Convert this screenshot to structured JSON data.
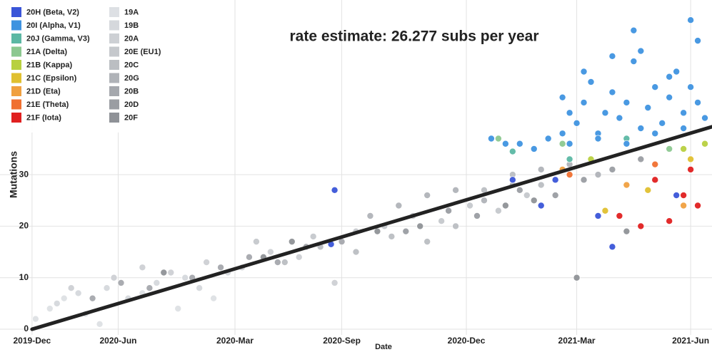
{
  "chart_data": {
    "type": "scatter",
    "title": "rate estimate: 26.277 subs per year",
    "xlabel": "Date",
    "ylabel": "Mutations",
    "xlim": [
      0,
      100
    ],
    "ylim": [
      -1.1,
      63.9
    ],
    "xticks": [
      {
        "value": 4.5,
        "label": "2019-Dec"
      },
      {
        "value": 16.6,
        "label": "2020-Jun"
      },
      {
        "value": 33,
        "label": "2020-Mar"
      },
      {
        "value": 48,
        "label": "2020-Sep"
      },
      {
        "value": 65.5,
        "label": "2020-Dec"
      },
      {
        "value": 81,
        "label": "2021-Mar"
      },
      {
        "value": 97,
        "label": "2021-Jun"
      }
    ],
    "yticks": [
      0,
      10,
      20,
      30
    ],
    "grid": true,
    "trend_line": {
      "x": [
        4.5,
        100
      ],
      "values": [
        0,
        39.3
      ],
      "color": "#222222"
    },
    "series": [
      {
        "name": "20H (Beta, V2)",
        "color": "#3a55d8",
        "x": [
          47,
          46.5,
          72,
          76,
          78,
          84,
          86,
          95
        ],
        "values": [
          27,
          16.5,
          29,
          24,
          29,
          22,
          16,
          26
        ]
      },
      {
        "name": "20I (Alpha, V1)",
        "color": "#3f93e0",
        "x": [
          69,
          71,
          73,
          75,
          77,
          79,
          79,
          80,
          81,
          82,
          83,
          84,
          85,
          86,
          87,
          88,
          89,
          90,
          91,
          92,
          93,
          94,
          95,
          96,
          97,
          98,
          99,
          80,
          84,
          88,
          92,
          96,
          82,
          86,
          90,
          94,
          98,
          89,
          97
        ],
        "values": [
          37,
          36,
          36,
          35,
          37,
          38,
          45,
          42,
          40,
          44,
          48,
          38,
          42,
          46,
          41,
          44,
          52,
          39,
          43,
          47,
          40,
          45,
          50,
          42,
          60,
          44,
          41,
          36,
          37,
          36,
          38,
          39,
          50,
          53,
          54,
          49,
          56,
          58,
          47
        ]
      },
      {
        "name": "20J (Gamma, V3)",
        "color": "#5cb8a4",
        "x": [
          72,
          80,
          88
        ],
        "values": [
          34.5,
          33,
          37
        ]
      },
      {
        "name": "21A (Delta)",
        "color": "#8cc890",
        "x": [
          70,
          79,
          94
        ],
        "values": [
          37,
          36,
          35
        ]
      },
      {
        "name": "21B (Kappa)",
        "color": "#b8d040",
        "x": [
          83,
          96,
          99
        ],
        "values": [
          33,
          35,
          36
        ]
      },
      {
        "name": "21C (Epsilon)",
        "color": "#e0c030",
        "x": [
          85,
          97,
          91
        ],
        "values": [
          23,
          33,
          27
        ]
      },
      {
        "name": "21D (Eta)",
        "color": "#f0a040",
        "x": [
          79,
          88,
          96
        ],
        "values": [
          31,
          28,
          24
        ]
      },
      {
        "name": "21E (Theta)",
        "color": "#f07030",
        "x": [
          80,
          92
        ],
        "values": [
          30,
          32
        ]
      },
      {
        "name": "21F (Iota)",
        "color": "#e02020",
        "x": [
          92,
          94,
          96,
          98,
          97,
          90,
          87
        ],
        "values": [
          29,
          21,
          26,
          24,
          31,
          20,
          22
        ]
      },
      {
        "name": "19A",
        "color": "#dde0e4",
        "x": [
          5,
          7,
          9,
          12,
          14,
          20,
          25,
          30
        ],
        "values": [
          2,
          4,
          6,
          3,
          1,
          7,
          4,
          6
        ]
      },
      {
        "name": "19B",
        "color": "#d5d8dc",
        "x": [
          8,
          11,
          15,
          18,
          22,
          26,
          28,
          32
        ],
        "values": [
          5,
          7,
          8,
          6,
          9,
          10,
          8,
          11
        ]
      },
      {
        "name": "20A",
        "color": "#cdd0d4",
        "x": [
          10,
          16,
          20,
          24,
          29,
          34,
          38,
          42,
          47
        ],
        "values": [
          8,
          10,
          12,
          11,
          13,
          12,
          15,
          14,
          9
        ]
      },
      {
        "name": "20E (EU1)",
        "color": "#c5c8cc",
        "x": [
          36,
          44,
          50,
          54,
          58,
          62,
          66,
          70,
          74
        ],
        "values": [
          17,
          18,
          19,
          20,
          22,
          21,
          24,
          23,
          26
        ]
      },
      {
        "name": "20C",
        "color": "#bbbec2",
        "x": [
          40,
          45,
          50,
          55,
          60,
          64,
          68,
          72,
          76
        ],
        "values": [
          13,
          16,
          15,
          18,
          17,
          20,
          27,
          30,
          28
        ]
      },
      {
        "name": "20G",
        "color": "#b0b3b8",
        "x": [
          52,
          56,
          60,
          64,
          68,
          72,
          76,
          80,
          84
        ],
        "values": [
          22,
          24,
          26,
          27,
          25,
          28,
          31,
          32,
          30
        ]
      },
      {
        "name": "20B",
        "color": "#a5a8ad",
        "x": [
          13,
          17,
          21,
          27,
          31,
          35,
          39,
          43,
          48
        ],
        "values": [
          6,
          9,
          8,
          10,
          12,
          14,
          13,
          16,
          17
        ]
      },
      {
        "name": "20D",
        "color": "#9a9da2",
        "x": [
          57,
          63,
          67,
          73,
          78,
          82,
          86,
          90
        ],
        "values": [
          19,
          23,
          22,
          27,
          26,
          29,
          31,
          33
        ]
      },
      {
        "name": "20F",
        "color": "#8f9297",
        "x": [
          23,
          37,
          41,
          53,
          59,
          71,
          75,
          81,
          88
        ],
        "values": [
          11,
          14,
          17,
          19,
          20,
          24,
          25,
          10,
          19
        ]
      }
    ]
  }
}
